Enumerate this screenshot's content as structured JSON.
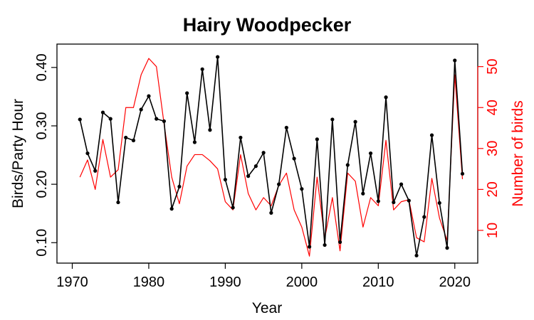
{
  "chart_data": {
    "type": "line",
    "title": "Hairy Woodpecker",
    "xlabel": "Year",
    "ylabel": "Birds/Party Hour",
    "y2label": "Number of birds",
    "xlim": [
      1968,
      2023
    ],
    "ylim": [
      0.065,
      0.44
    ],
    "y2lim": [
      2.0,
      55.5
    ],
    "x_ticks": [
      1970,
      1980,
      1990,
      2000,
      2010,
      2020
    ],
    "y_ticks": [
      0.1,
      0.2,
      0.3,
      0.4
    ],
    "y_tick_labels": [
      "0.10",
      "0.20",
      "0.30",
      "0.40"
    ],
    "y2_ticks": [
      10,
      20,
      30,
      40,
      50
    ],
    "y2_tick_labels": [
      "10",
      "20",
      "30",
      "40",
      "50"
    ],
    "grid": false,
    "legend": "none",
    "colors": {
      "primary": "#000000",
      "secondary": "#ff0000"
    },
    "x": [
      1971,
      1972,
      1973,
      1974,
      1975,
      1976,
      1977,
      1978,
      1979,
      1980,
      1981,
      1982,
      1983,
      1984,
      1985,
      1986,
      1987,
      1988,
      1989,
      1990,
      1991,
      1992,
      1993,
      1994,
      1995,
      1996,
      1997,
      1998,
      1999,
      2000,
      2001,
      2002,
      2003,
      2004,
      2005,
      2006,
      2007,
      2008,
      2009,
      2010,
      2011,
      2012,
      2013,
      2014,
      2015,
      2016,
      2017,
      2018,
      2019,
      2020,
      2021
    ],
    "series": [
      {
        "axis": "left",
        "color": "#000000",
        "markers": true,
        "values": [
          0.311,
          0.253,
          0.223,
          0.323,
          0.312,
          0.169,
          0.28,
          0.275,
          0.328,
          0.351,
          0.312,
          0.308,
          0.158,
          0.196,
          0.356,
          0.272,
          0.397,
          0.293,
          0.418,
          0.208,
          0.16,
          0.28,
          0.214,
          0.231,
          0.254,
          0.151,
          0.2,
          0.297,
          0.244,
          0.192,
          0.093,
          0.277,
          0.096,
          0.311,
          0.101,
          0.233,
          0.307,
          0.184,
          0.253,
          0.171,
          0.349,
          0.169,
          0.2,
          0.172,
          0.078,
          0.144,
          0.284,
          0.168,
          0.091,
          0.412,
          0.218
        ]
      },
      {
        "axis": "right",
        "color": "#ff0000",
        "markers": false,
        "values": [
          23.0,
          27.2,
          20.0,
          32.2,
          23.0,
          24.8,
          40.0,
          40.0,
          48.0,
          52.0,
          50.0,
          36.0,
          23.0,
          16.5,
          25.7,
          28.5,
          28.5,
          27.0,
          25.0,
          17.0,
          15.0,
          28.5,
          19.0,
          15.0,
          18.0,
          16.0,
          21.0,
          24.0,
          15.0,
          10.8,
          3.7,
          23.0,
          8.0,
          18.0,
          5.0,
          24.0,
          22.0,
          10.8,
          18.0,
          16.0,
          32.0,
          15.0,
          17.0,
          17.5,
          8.2,
          7.2,
          22.7,
          13.0,
          7.5,
          48.0,
          22.5
        ]
      }
    ]
  }
}
